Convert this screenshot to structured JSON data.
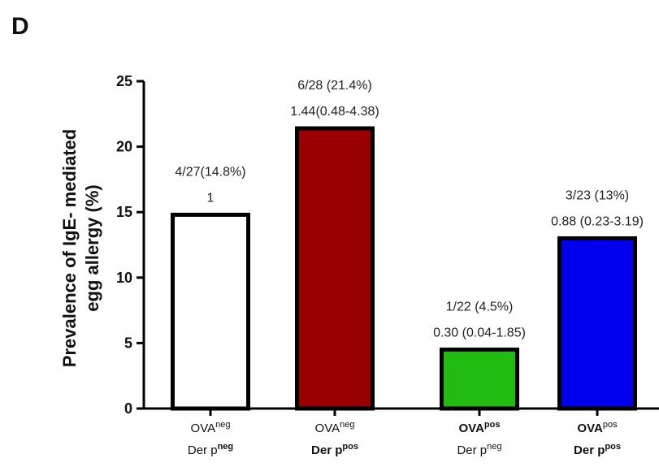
{
  "chart_data": {
    "type": "bar",
    "panel_label": "D",
    "ylabel_lines": [
      "Prevalence of IgE- mediated",
      "egg allergy (%)"
    ],
    "ylim": [
      0,
      25
    ],
    "yticks": [
      0,
      5,
      10,
      15,
      20,
      25
    ],
    "categories": [
      {
        "line1": [
          {
            "t": "OVA",
            "bold": false
          },
          {
            "t": "neg",
            "sup": true,
            "bold": false
          }
        ],
        "line2": [
          {
            "t": "Der p",
            "bold": false
          },
          {
            "t": "neg",
            "sup": true,
            "bold": true
          }
        ]
      },
      {
        "line1": [
          {
            "t": "OVA",
            "bold": false
          },
          {
            "t": "neg",
            "sup": true,
            "bold": false
          }
        ],
        "line2": [
          {
            "t": "Der p",
            "bold": true
          },
          {
            "t": "pos",
            "sup": true,
            "bold": true
          }
        ]
      },
      {
        "line1": [
          {
            "t": "OVA",
            "bold": true
          },
          {
            "t": "pos",
            "sup": true,
            "bold": true
          }
        ],
        "line2": [
          {
            "t": "Der p",
            "bold": false
          },
          {
            "t": "neg",
            "sup": true,
            "bold": false
          }
        ]
      },
      {
        "line1": [
          {
            "t": "OVA",
            "bold": true
          },
          {
            "t": "pos",
            "sup": true,
            "bold": false
          }
        ],
        "line2": [
          {
            "t": "Der p",
            "bold": true
          },
          {
            "t": "pos",
            "sup": true,
            "bold": true
          }
        ]
      }
    ],
    "values": [
      14.8,
      21.4,
      4.5,
      13.0
    ],
    "colors": [
      "#ffffff",
      "#990000",
      "#22bb11",
      "#0000ee"
    ],
    "annotations": [
      [
        "4/27(14.8%)",
        "1"
      ],
      [
        "6/28 (21.4%)",
        "1.44(0.48-4.38)"
      ],
      [
        "1/22 (4.5%)",
        "0.30 (0.04-1.85)"
      ],
      [
        "3/23 (13%)",
        "0.88 (0.23-3.19)"
      ]
    ],
    "grid": false
  }
}
